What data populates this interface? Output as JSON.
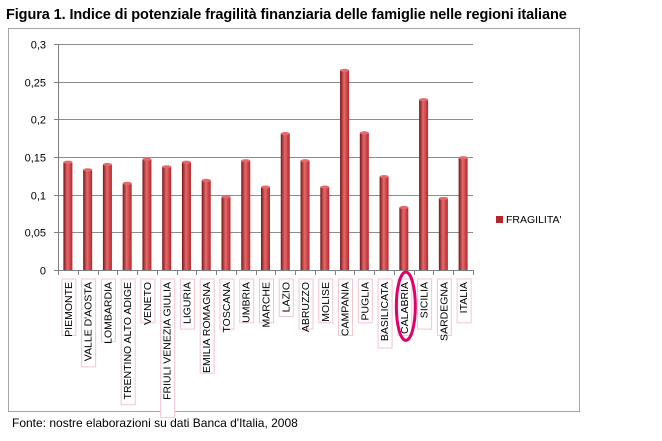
{
  "figure": {
    "title": "Figura 1. Indice di potenziale fragilità  finanziaria delle famiglie nelle regioni italiane",
    "source": "Fonte: nostre elaborazioni su dati Banca d'Italia, 2008"
  },
  "colors": {
    "bar": "#b3262b",
    "bar_highlight": "#e56a6c",
    "bar_shadow": "#7a1417",
    "gridline": "#8c8c8c",
    "label_shadow": "#f2c6cf",
    "annotation": "#e0006c"
  },
  "annotation": {
    "type": "circle",
    "category": "CALABRIA"
  },
  "chart_data": {
    "type": "bar",
    "title": "",
    "xlabel": "",
    "ylabel": "",
    "ylim": [
      0,
      0.3
    ],
    "grid": true,
    "legend_position": "right",
    "y_ticks": [
      "0",
      "0,05",
      "0,1",
      "0,15",
      "0,2",
      "0,25",
      "0,3"
    ],
    "categories": [
      "PIEMONTE",
      "VALLE D'AOSTA",
      "LOMBARDIA",
      "TRENTINO ALTO ADIGE",
      "VENETO",
      "FRIULI VENEZIA GIULIA",
      "LIGURIA",
      "EMILIA ROMAGNA",
      "TOSCANA",
      "UMBRIA",
      "MARCHE",
      "LAZIO",
      "ABRUZZO",
      "MOLISE",
      "CAMPANIA",
      "PUGLIA",
      "BASILICATA",
      "CALABRIA",
      "SICILIA",
      "SARDEGNA",
      "ITALIA"
    ],
    "series": [
      {
        "name": "FRAGILITA'",
        "values": [
          0.143,
          0.133,
          0.14,
          0.115,
          0.147,
          0.137,
          0.143,
          0.119,
          0.097,
          0.145,
          0.11,
          0.181,
          0.145,
          0.11,
          0.265,
          0.182,
          0.124,
          0.083,
          0.226,
          0.095,
          0.149
        ]
      }
    ]
  }
}
